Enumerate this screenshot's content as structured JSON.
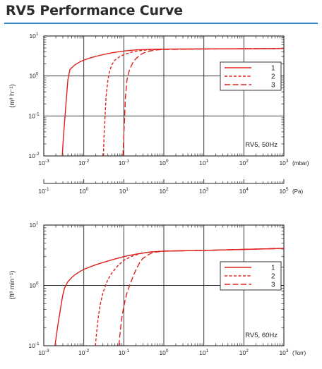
{
  "page": {
    "title": "RV5 Performance Curve",
    "accent_color": "#2f87c8"
  },
  "chart_data": [
    {
      "type": "line",
      "x_scale": "log",
      "y_scale": "log",
      "xlabel": "(mbar)",
      "x2label": "(Pa)",
      "ylabel": "(m³ h⁻¹)",
      "xlim": [
        0.001,
        1000
      ],
      "ylim": [
        0.01,
        10
      ],
      "x2lim": [
        0.1,
        100000
      ],
      "x_ticks": [
        -3,
        -2,
        -1,
        0,
        1,
        2,
        3
      ],
      "y_ticks": [
        -2,
        -1,
        0,
        1
      ],
      "x2_ticks": [
        -1,
        0,
        1,
        2,
        3,
        4,
        5
      ],
      "annotation": "RV5, 50Hz",
      "legend_position": "right",
      "line_color": "#e0201b",
      "grid": true,
      "series": [
        {
          "name": "1",
          "dash": "solid",
          "x": [
            0.0029,
            0.0031,
            0.0034,
            0.0037,
            0.004,
            0.0045,
            0.005,
            0.006,
            0.008,
            0.01,
            0.015,
            0.02,
            0.03,
            0.05,
            0.1,
            0.2,
            0.5,
            1,
            10,
            100,
            1000
          ],
          "y": [
            0.01,
            0.03,
            0.1,
            0.3,
            0.8,
            1.45,
            1.6,
            1.9,
            2.25,
            2.5,
            2.85,
            3.1,
            3.4,
            3.8,
            4.2,
            4.5,
            4.65,
            4.7,
            4.75,
            4.8,
            4.85
          ]
        },
        {
          "name": "2",
          "dash": "short",
          "x": [
            0.031,
            0.032,
            0.034,
            0.036,
            0.04,
            0.045,
            0.05,
            0.06,
            0.08,
            0.1,
            0.15,
            0.2,
            0.3,
            0.5,
            1,
            10,
            100,
            1000
          ],
          "y": [
            0.01,
            0.03,
            0.1,
            0.3,
            0.8,
            1.4,
            1.9,
            2.5,
            3.05,
            3.4,
            3.9,
            4.15,
            4.4,
            4.55,
            4.65,
            4.75,
            4.8,
            4.85
          ]
        },
        {
          "name": "3",
          "dash": "long",
          "x": [
            0.095,
            0.1,
            0.105,
            0.11,
            0.12,
            0.135,
            0.15,
            0.17,
            0.2,
            0.25,
            0.3,
            0.4,
            0.5,
            0.7,
            1,
            10,
            100,
            1000
          ],
          "y": [
            0.01,
            0.03,
            0.1,
            0.3,
            0.8,
            1.3,
            1.7,
            2.2,
            2.7,
            3.3,
            3.7,
            4.1,
            4.3,
            4.5,
            4.6,
            4.72,
            4.8,
            4.85
          ]
        }
      ]
    },
    {
      "type": "line",
      "x_scale": "log",
      "y_scale": "log",
      "xlabel": "(Torr)",
      "ylabel": "(ft³ min⁻¹)",
      "xlim": [
        0.001,
        1000
      ],
      "ylim": [
        0.1,
        10
      ],
      "x_ticks": [
        -3,
        -2,
        -1,
        0,
        1,
        2,
        3
      ],
      "y_ticks": [
        -1,
        0,
        1
      ],
      "annotation": "RV5, 60Hz",
      "legend_position": "right",
      "line_color": "#e0201b",
      "grid": true,
      "series": [
        {
          "name": "1",
          "dash": "solid",
          "x": [
            0.0019,
            0.0022,
            0.0026,
            0.003,
            0.0033,
            0.0037,
            0.004,
            0.005,
            0.006,
            0.008,
            0.01,
            0.02,
            0.05,
            0.1,
            0.2,
            0.5,
            1,
            10,
            100,
            1000
          ],
          "y": [
            0.1,
            0.2,
            0.4,
            0.7,
            0.9,
            1.05,
            1.15,
            1.35,
            1.5,
            1.7,
            1.85,
            2.2,
            2.65,
            3.0,
            3.3,
            3.6,
            3.7,
            3.8,
            3.95,
            4.1
          ]
        },
        {
          "name": "2",
          "dash": "short",
          "x": [
            0.0195,
            0.021,
            0.023,
            0.026,
            0.03,
            0.035,
            0.04,
            0.05,
            0.07,
            0.1,
            0.15,
            0.2,
            0.3,
            0.5,
            1,
            10,
            100,
            1000
          ],
          "y": [
            0.1,
            0.17,
            0.3,
            0.5,
            0.75,
            1.0,
            1.25,
            1.6,
            2.1,
            2.6,
            3.0,
            3.2,
            3.45,
            3.6,
            3.7,
            3.8,
            3.95,
            4.1
          ]
        },
        {
          "name": "3",
          "dash": "long",
          "x": [
            0.075,
            0.08,
            0.085,
            0.09,
            0.1,
            0.11,
            0.12,
            0.14,
            0.17,
            0.2,
            0.25,
            0.3,
            0.4,
            0.5,
            0.7,
            1,
            10,
            100,
            1000
          ],
          "y": [
            0.1,
            0.15,
            0.22,
            0.3,
            0.45,
            0.6,
            0.75,
            1.0,
            1.4,
            1.8,
            2.4,
            2.8,
            3.2,
            3.45,
            3.6,
            3.7,
            3.8,
            3.95,
            4.1
          ]
        }
      ]
    }
  ]
}
